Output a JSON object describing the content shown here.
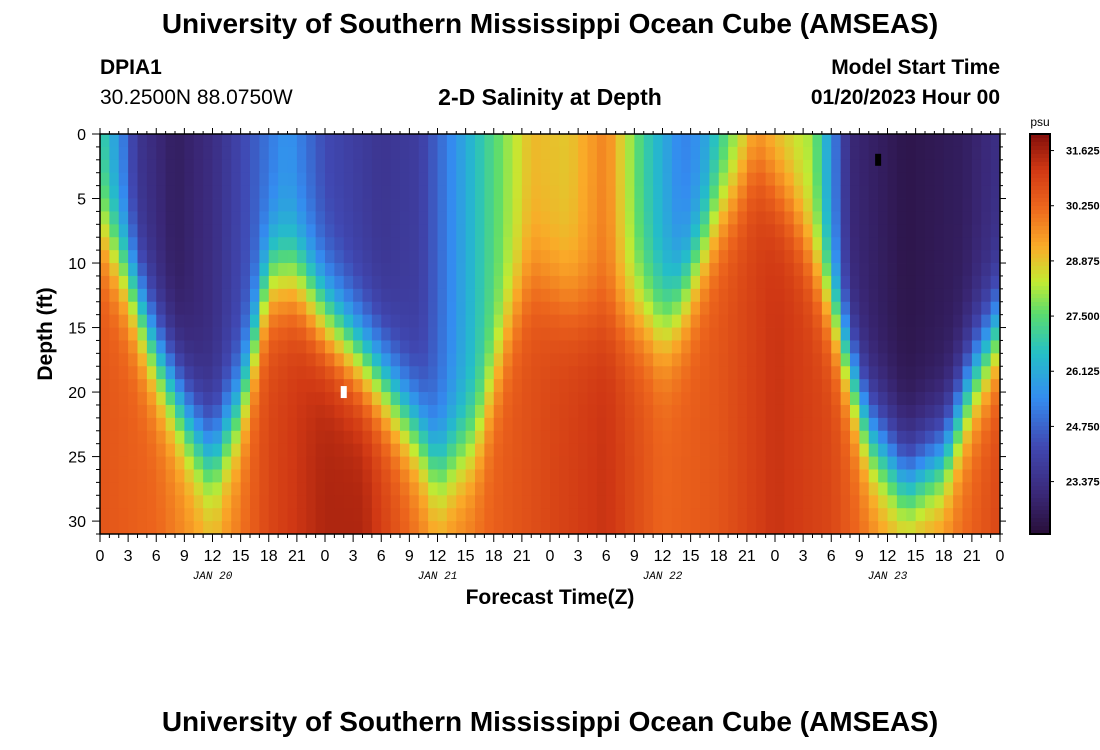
{
  "header": {
    "title": "University of Southern Mississippi Ocean Cube (AMSEAS)",
    "station_id": "DPIA1",
    "coordinates": "30.2500N  88.0750W",
    "plot_title": "2-D Salinity at Depth",
    "start_label": "Model Start Time",
    "start_value": "01/20/2023 Hour 00"
  },
  "footer": {
    "title": "University of Southern Mississippi Ocean Cube (AMSEAS)"
  },
  "chart_data": {
    "type": "heatmap",
    "title": "2-D Salinity at Depth",
    "xlabel": "Forecast Time(Z)",
    "ylabel": "Depth (ft)",
    "x_range_hours": [
      0,
      96
    ],
    "y_range_ft": [
      0,
      31
    ],
    "x_tick_labels": [
      "0",
      "3",
      "6",
      "9",
      "12",
      "15",
      "18",
      "21",
      "0",
      "3",
      "6",
      "9",
      "12",
      "15",
      "18",
      "21",
      "0",
      "3",
      "6",
      "9",
      "12",
      "15",
      "18",
      "21",
      "0",
      "3",
      "6",
      "9",
      "12",
      "15",
      "18",
      "21",
      "0"
    ],
    "date_labels": [
      {
        "text": "JAN 20",
        "hour": 12
      },
      {
        "text": "JAN 21",
        "hour": 36
      },
      {
        "text": "JAN 22",
        "hour": 60
      },
      {
        "text": "JAN 23",
        "hour": 84
      }
    ],
    "y_ticks": [
      0,
      5,
      10,
      15,
      20,
      25,
      30
    ],
    "colorbar": {
      "unit": "psu",
      "labels": [
        "31.625",
        "30.250",
        "28.875",
        "27.500",
        "26.125",
        "24.750",
        "23.375"
      ],
      "range": [
        22.0,
        32.0
      ]
    },
    "surface_salinity_by_hour": [
      [
        0,
        27.0
      ],
      [
        2,
        25.5
      ],
      [
        4,
        23.5
      ],
      [
        8,
        22.6
      ],
      [
        12,
        23.2
      ],
      [
        18,
        25.0
      ],
      [
        20,
        25.6
      ],
      [
        24,
        24.2
      ],
      [
        30,
        23.5
      ],
      [
        34,
        23.8
      ],
      [
        40,
        26.5
      ],
      [
        46,
        29.0
      ],
      [
        50,
        28.8
      ],
      [
        54,
        29.8
      ],
      [
        58,
        27.0
      ],
      [
        62,
        25.2
      ],
      [
        64,
        25.5
      ],
      [
        70,
        29.0
      ],
      [
        76,
        28.0
      ],
      [
        80,
        23.0
      ],
      [
        86,
        22.3
      ],
      [
        92,
        22.6
      ],
      [
        96,
        23.3
      ]
    ],
    "halocline_depth_ft_by_hour": [
      [
        0,
        7
      ],
      [
        3,
        11
      ],
      [
        6,
        17
      ],
      [
        10,
        23
      ],
      [
        12,
        25
      ],
      [
        15,
        21
      ],
      [
        18,
        11
      ],
      [
        21,
        11
      ],
      [
        24,
        14
      ],
      [
        30,
        19
      ],
      [
        34,
        23
      ],
      [
        36,
        26
      ],
      [
        40,
        24
      ],
      [
        44,
        14
      ],
      [
        46,
        11
      ],
      [
        50,
        13
      ],
      [
        54,
        14
      ],
      [
        58,
        14
      ],
      [
        60,
        15
      ],
      [
        62,
        13
      ],
      [
        66,
        6
      ],
      [
        70,
        2
      ],
      [
        74,
        6
      ],
      [
        78,
        13
      ],
      [
        82,
        23
      ],
      [
        86,
        27
      ],
      [
        90,
        25
      ],
      [
        93,
        19
      ],
      [
        96,
        15
      ]
    ],
    "bottom_salinity_by_hour": [
      [
        0,
        30.5
      ],
      [
        6,
        30.2
      ],
      [
        12,
        29.2
      ],
      [
        18,
        30.8
      ],
      [
        24,
        31.5
      ],
      [
        28,
        31.5
      ],
      [
        36,
        29.5
      ],
      [
        42,
        30.3
      ],
      [
        48,
        30.8
      ],
      [
        54,
        31.2
      ],
      [
        60,
        30.2
      ],
      [
        66,
        30.5
      ],
      [
        72,
        31.2
      ],
      [
        78,
        30.8
      ],
      [
        84,
        29.5
      ],
      [
        90,
        29.8
      ],
      [
        96,
        30.8
      ]
    ],
    "marked_cells": [
      {
        "hour": 26,
        "depth_ft": 20,
        "color": "#ffffff"
      },
      {
        "hour": 83,
        "depth_ft": 2,
        "color": "#000000"
      }
    ]
  }
}
